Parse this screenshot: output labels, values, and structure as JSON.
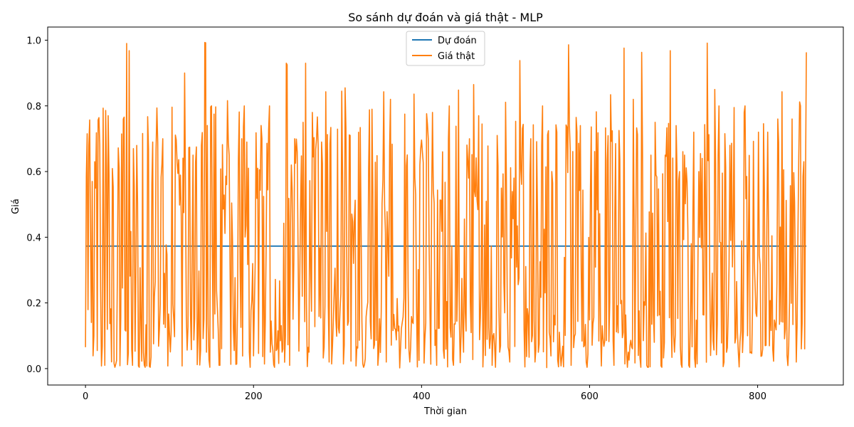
{
  "chart_data": {
    "type": "line",
    "title": "So sánh dự đoán và giá thật - MLP",
    "xlabel": "Thời gian",
    "ylabel": "Giá",
    "xlim": [
      -45,
      902
    ],
    "ylim": [
      -0.05,
      1.04
    ],
    "xticks": [
      0,
      200,
      400,
      600,
      800
    ],
    "yticks": [
      0.0,
      0.2,
      0.4,
      0.6,
      0.8,
      1.0
    ],
    "ytick_labels": [
      "0.0",
      "0.2",
      "0.4",
      "0.6",
      "0.8",
      "1.0"
    ],
    "grid": false,
    "legend_position": "upper center",
    "series": [
      {
        "name": "Dự đoán",
        "color": "#1f77b4",
        "x": [
          0,
          858
        ],
        "y": [
          0.373,
          0.373
        ]
      },
      {
        "name": "Giá thật",
        "color": "#ff7f0e",
        "length": 859,
        "seed": 20240,
        "anchors": [
          [
            0,
            0.065
          ],
          [
            2,
            0.715
          ],
          [
            4,
            0.68
          ],
          [
            5,
            0.757
          ],
          [
            8,
            0.57
          ],
          [
            10,
            0.1
          ],
          [
            11,
            0.63
          ],
          [
            14,
            0.055
          ],
          [
            15,
            0.757
          ],
          [
            17,
            0.68
          ],
          [
            19,
            0.008
          ],
          [
            21,
            0.793
          ],
          [
            23,
            0.01
          ],
          [
            24,
            0.786
          ],
          [
            27,
            0.77
          ],
          [
            33,
            0.553
          ],
          [
            39,
            0.672
          ],
          [
            45,
            0.76
          ],
          [
            49,
            0.99
          ],
          [
            50,
            0.012
          ],
          [
            52,
            0.968
          ],
          [
            56,
            0.01
          ],
          [
            57,
            0.67
          ],
          [
            63,
            0.008
          ],
          [
            68,
            0.716
          ],
          [
            74,
            0.767
          ],
          [
            76,
            0.007
          ],
          [
            80,
            0.69
          ],
          [
            86,
            0.688
          ],
          [
            92,
            0.7
          ],
          [
            98,
            0.008
          ],
          [
            103,
            0.796
          ],
          [
            109,
            0.63
          ],
          [
            115,
            0.008
          ],
          [
            118,
            0.9
          ],
          [
            123,
            0.673
          ],
          [
            128,
            0.65
          ],
          [
            133,
            0.012
          ],
          [
            138,
            0.68
          ],
          [
            142,
            0.993
          ],
          [
            143,
            0.992
          ],
          [
            144,
            0.05
          ],
          [
            149,
            0.797
          ],
          [
            153,
            0.775
          ],
          [
            155,
            0.797
          ],
          [
            160,
            0.01
          ],
          [
            163,
            0.682
          ],
          [
            169,
            0.816
          ],
          [
            173,
            0.013
          ],
          [
            180,
            0.014
          ],
          [
            186,
            0.7
          ],
          [
            192,
            0.69
          ],
          [
            195,
            0.05
          ],
          [
            199,
            0.32
          ],
          [
            205,
            0.61
          ],
          [
            210,
            0.7
          ],
          [
            213,
            0.014
          ],
          [
            216,
            0.686
          ],
          [
            220,
            0.05
          ],
          [
            224,
            0.012
          ],
          [
            228,
            0.06
          ],
          [
            234,
            0.05
          ],
          [
            238,
            0.1
          ],
          [
            239,
            0.93
          ],
          [
            240,
            0.925
          ],
          [
            243,
            0.01
          ],
          [
            245,
            0.62
          ],
          [
            249,
            0.7
          ],
          [
            252,
            0.66
          ],
          [
            256,
            0.5
          ],
          [
            259,
            0.75
          ],
          [
            262,
            0.93
          ],
          [
            266,
            0.05
          ],
          [
            270,
            0.78
          ],
          [
            275,
            0.7
          ],
          [
            281,
            0.69
          ],
          [
            286,
            0.843
          ],
          [
            290,
            0.02
          ],
          [
            298,
            0.15
          ],
          [
            305,
            0.845
          ],
          [
            307,
            0.014
          ],
          [
            309,
            0.855
          ],
          [
            315,
            0.71
          ],
          [
            322,
            0.008
          ],
          [
            327,
            0.734
          ],
          [
            333,
            0.03
          ],
          [
            338,
            0.788
          ],
          [
            341,
            0.79
          ],
          [
            348,
            0.01
          ],
          [
            355,
            0.843
          ],
          [
            358,
            0.02
          ],
          [
            363,
            0.82
          ],
          [
            369,
            0.12
          ],
          [
            374,
            0.002
          ],
          [
            380,
            0.775
          ],
          [
            386,
            0.02
          ],
          [
            391,
            0.836
          ],
          [
            395,
            0.005
          ],
          [
            401,
            0.66
          ],
          [
            406,
            0.776
          ],
          [
            413,
            0.78
          ],
          [
            418,
            0.01
          ],
          [
            425,
            0.66
          ],
          [
            432,
            0.698
          ],
          [
            438,
            0.01
          ],
          [
            444,
            0.848
          ],
          [
            450,
            0.05
          ],
          [
            457,
            0.7
          ],
          [
            462,
            0.865
          ],
          [
            468,
            0.77
          ],
          [
            473,
            0.005
          ],
          [
            479,
            0.678
          ],
          [
            484,
            0.01
          ],
          [
            490,
            0.71
          ],
          [
            500,
            0.811
          ],
          [
            505,
            0.02
          ],
          [
            512,
            0.753
          ],
          [
            517,
            0.938
          ],
          [
            523,
            0.005
          ],
          [
            530,
            0.7
          ],
          [
            535,
            0.02
          ],
          [
            543,
            0.68
          ],
          [
            549,
            0.003
          ],
          [
            555,
            0.6
          ],
          [
            561,
            0.72
          ],
          [
            566,
            0.008
          ],
          [
            572,
            0.742
          ],
          [
            575,
            0.986
          ],
          [
            578,
            0.01
          ],
          [
            584,
            0.765
          ],
          [
            589,
            0.74
          ],
          [
            596,
            0.02
          ],
          [
            602,
            0.736
          ],
          [
            608,
            0.782
          ],
          [
            614,
            0.008
          ],
          [
            619,
            0.733
          ],
          [
            625,
            0.834
          ],
          [
            629,
            0.01
          ],
          [
            635,
            0.725
          ],
          [
            641,
            0.976
          ],
          [
            646,
            0.05
          ],
          [
            652,
            0.82
          ],
          [
            658,
            0.04
          ],
          [
            662,
            0.963
          ],
          [
            668,
            0.01
          ],
          [
            673,
            0.65
          ],
          [
            678,
            0.75
          ],
          [
            685,
            0.008
          ],
          [
            690,
            0.65
          ],
          [
            696,
            0.968
          ],
          [
            701,
            0.05
          ],
          [
            707,
            0.6
          ],
          [
            713,
            0.65
          ],
          [
            718,
            0.01
          ],
          [
            724,
            0.72
          ],
          [
            730,
            0.6
          ],
          [
            737,
            0.743
          ],
          [
            740,
            0.991
          ],
          [
            744,
            0.04
          ],
          [
            749,
            0.85
          ],
          [
            754,
            0.8
          ],
          [
            760,
            0.02
          ],
          [
            767,
            0.68
          ],
          [
            772,
            0.795
          ],
          [
            778,
            0.005
          ],
          [
            784,
            0.78
          ],
          [
            788,
            0.1
          ],
          [
            795,
            0.692
          ],
          [
            801,
            0.72
          ],
          [
            806,
            0.06
          ],
          [
            812,
            0.72
          ],
          [
            818,
            0.058
          ],
          [
            824,
            0.76
          ],
          [
            829,
            0.843
          ],
          [
            835,
            0.04
          ],
          [
            841,
            0.76
          ],
          [
            846,
            0.02
          ],
          [
            850,
            0.812
          ],
          [
            852,
            0.06
          ],
          [
            855,
            0.63
          ],
          [
            856,
            0.06
          ],
          [
            857,
            0.57
          ],
          [
            858,
            0.963
          ]
        ]
      }
    ]
  }
}
